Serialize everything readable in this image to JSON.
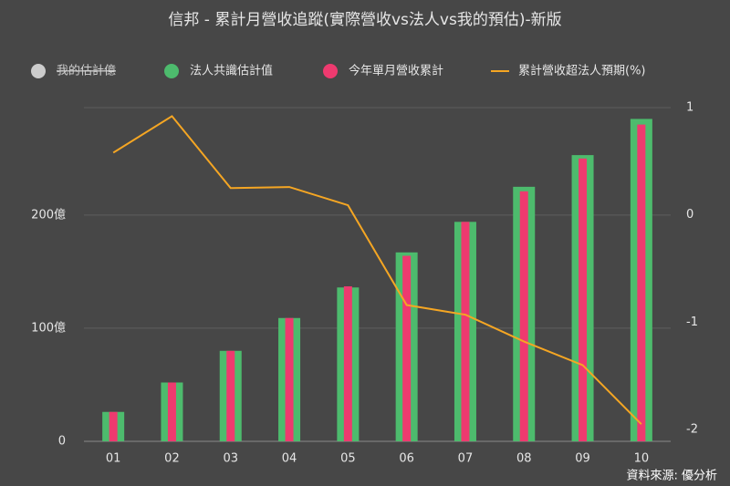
{
  "chart_data": {
    "type": "bar-line",
    "title": "信邦 - 累計月營收追蹤(實際營收vs法人vs我的預估)-新版",
    "source": "資料來源: 優分析",
    "categories": [
      "01",
      "02",
      "03",
      "04",
      "05",
      "06",
      "07",
      "08",
      "09",
      "10"
    ],
    "series": [
      {
        "name": "我的估計億",
        "color": "#cccccc",
        "hidden": true,
        "values": [
          null,
          null,
          null,
          null,
          null,
          null,
          null,
          null,
          null,
          null
        ]
      },
      {
        "name": "法人共識估計值",
        "color": "#4dbb6d",
        "kind": "bar",
        "width": 24,
        "values": [
          26,
          52,
          80,
          109,
          136,
          167,
          194,
          225,
          253,
          285
        ]
      },
      {
        "name": "今年單月營收累計",
        "color": "#ee3a6f",
        "kind": "bar",
        "width": 9,
        "values": [
          26,
          52,
          80,
          109,
          137,
          164,
          194,
          221,
          250,
          280
        ]
      },
      {
        "name": "累計營收超法人預期(%)",
        "color": "#f5a623",
        "kind": "line",
        "axis": "y2",
        "values": [
          0.58,
          0.92,
          0.25,
          0.26,
          0.09,
          -0.84,
          -0.93,
          -1.18,
          -1.4,
          -1.95
        ]
      }
    ],
    "ylim": [
      0,
      295
    ],
    "yticks": [
      0,
      {
        "value": 100,
        "label": "100億"
      },
      {
        "value": 200,
        "label": "200億"
      }
    ],
    "y2lim": [
      -2.11,
      1
    ],
    "y2ticks": [
      -2,
      -1,
      0,
      1
    ],
    "grid": true,
    "legend": "top"
  }
}
